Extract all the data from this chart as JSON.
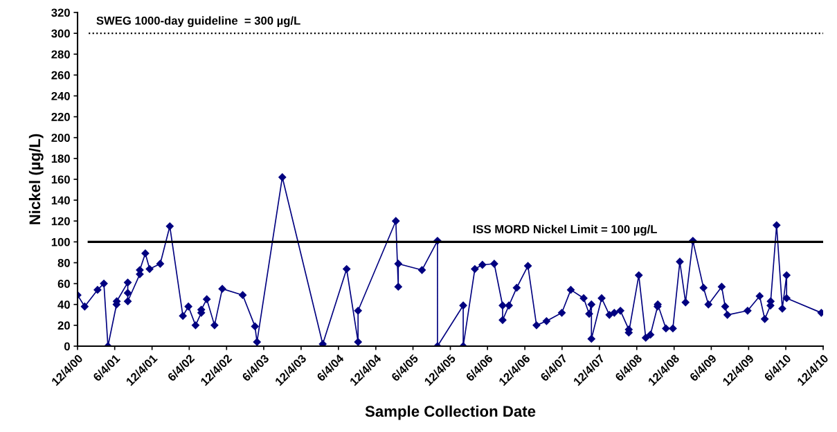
{
  "chart_data": {
    "type": "line",
    "xlabel": "Sample Collection Date",
    "ylabel": "Nickel (µg/L)",
    "xlim": [
      "2000-12-04",
      "2010-12-04"
    ],
    "xticks": [
      {
        "value": "2000-12-04",
        "label": "12/4/00"
      },
      {
        "value": "2001-06-04",
        "label": "6/4/01"
      },
      {
        "value": "2001-12-04",
        "label": "12/4/01"
      },
      {
        "value": "2002-06-04",
        "label": "6/4/02"
      },
      {
        "value": "2002-12-04",
        "label": "12/4/02"
      },
      {
        "value": "2003-06-04",
        "label": "6/4/03"
      },
      {
        "value": "2003-12-04",
        "label": "12/4/03"
      },
      {
        "value": "2004-06-04",
        "label": "6/4/04"
      },
      {
        "value": "2004-12-04",
        "label": "12/4/04"
      },
      {
        "value": "2005-06-04",
        "label": "6/4/05"
      },
      {
        "value": "2005-12-04",
        "label": "12/4/05"
      },
      {
        "value": "2006-06-04",
        "label": "6/4/06"
      },
      {
        "value": "2006-12-04",
        "label": "12/4/06"
      },
      {
        "value": "2007-06-04",
        "label": "6/4/07"
      },
      {
        "value": "2007-12-04",
        "label": "12/4/07"
      },
      {
        "value": "2008-06-04",
        "label": "6/4/08"
      },
      {
        "value": "2008-12-04",
        "label": "12/4/08"
      },
      {
        "value": "2009-06-04",
        "label": "6/4/09"
      },
      {
        "value": "2009-12-04",
        "label": "12/4/09"
      },
      {
        "value": "2010-06-04",
        "label": "6/4/10"
      },
      {
        "value": "2010-12-04",
        "label": "12/4/10"
      }
    ],
    "ylim": [
      0,
      320
    ],
    "yticks": [
      0,
      20,
      40,
      60,
      80,
      100,
      120,
      140,
      160,
      180,
      200,
      220,
      240,
      260,
      280,
      300,
      320
    ],
    "grid": false,
    "legend": false,
    "marker": "diamond",
    "line_style": "solid",
    "series": [
      {
        "color": "#000080",
        "x": [
          "2000-12-04",
          "2001-01-08",
          "2001-03-12",
          "2001-04-12",
          "2001-05-02",
          "2001-06-13",
          "2001-06-14",
          "2001-08-07",
          "2001-08-07",
          "2001-08-07",
          "2001-10-05",
          "2001-10-05",
          "2001-11-01",
          "2001-11-22",
          "2002-01-13",
          "2002-03-01",
          "2002-05-04",
          "2002-05-31",
          "2002-07-05",
          "2002-08-02",
          "2002-08-02",
          "2002-08-29",
          "2002-10-06",
          "2002-11-13",
          "2003-02-21",
          "2003-04-22",
          "2003-05-02",
          "2003-09-03",
          "2004-03-19",
          "2004-07-14",
          "2004-09-08",
          "2004-09-08",
          "2005-03-12",
          "2005-03-24",
          "2005-03-24",
          "2005-07-18",
          "2005-10-02",
          "2005-10-02",
          "2006-02-05",
          "2006-02-05",
          "2006-04-03",
          "2006-05-10",
          "2006-07-07",
          "2006-08-17",
          "2006-08-17",
          "2006-09-17",
          "2006-10-25",
          "2006-12-19",
          "2007-01-30",
          "2007-03-20",
          "2007-06-03",
          "2007-07-17",
          "2007-09-18",
          "2007-10-15",
          "2007-10-26",
          "2007-10-26",
          "2007-12-15",
          "2008-01-22",
          "2008-02-15",
          "2008-03-16",
          "2008-04-26",
          "2008-04-26",
          "2008-06-14",
          "2008-07-18",
          "2008-08-10",
          "2008-09-14",
          "2008-09-15",
          "2008-10-25",
          "2008-11-28",
          "2009-01-01",
          "2009-01-29",
          "2009-03-06",
          "2009-04-27",
          "2009-05-21",
          "2009-07-25",
          "2009-08-11",
          "2009-08-22",
          "2009-11-29",
          "2010-01-27",
          "2010-02-21",
          "2010-03-21",
          "2010-03-22",
          "2010-04-20",
          "2010-05-18",
          "2010-06-08",
          "2010-06-08",
          "2010-11-25"
        ],
        "values": [
          49,
          38,
          54,
          60,
          0,
          40,
          43,
          61,
          51,
          43,
          69,
          73,
          89,
          74,
          79,
          115,
          29,
          38,
          20,
          32,
          35,
          45,
          20,
          55,
          49,
          19,
          4,
          162,
          2,
          74,
          4,
          34,
          120,
          57,
          79,
          73,
          101,
          0,
          39,
          0,
          74,
          78,
          79,
          39,
          25,
          39,
          56,
          77,
          20,
          24,
          32,
          54,
          46,
          31,
          40,
          7,
          46,
          30,
          32,
          34,
          16,
          13,
          68,
          8,
          11,
          38,
          40,
          17,
          17,
          81,
          42,
          101,
          56,
          40,
          57,
          38,
          30,
          34,
          48,
          26,
          39,
          43,
          116,
          36,
          68,
          46,
          32
        ]
      }
    ],
    "ref_lines": [
      {
        "axis": "y",
        "value": 300,
        "label": "SWEG 1000-day guideline  = 300 µg/L",
        "color": "#000000",
        "line_style": "dotted"
      },
      {
        "axis": "y",
        "value": 100,
        "label": "ISS MORD Nickel Limit = 100 µg/L",
        "color": "#000000",
        "line_style": "solid"
      }
    ]
  }
}
